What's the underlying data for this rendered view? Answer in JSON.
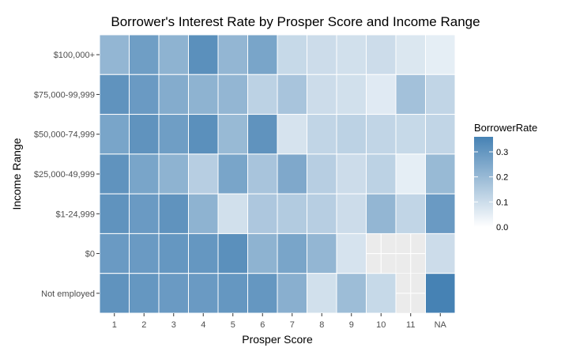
{
  "chart_data": {
    "type": "heatmap",
    "title": "Borrower's Interest Rate by Prosper Score and Income Range",
    "xlabel": "Prosper Score",
    "ylabel": "Income Range",
    "x_categories": [
      "1",
      "2",
      "3",
      "4",
      "5",
      "6",
      "7",
      "8",
      "9",
      "10",
      "11",
      "NA"
    ],
    "y_categories": [
      "$100,000+",
      "$75,000-99,999",
      "$50,000-74,999",
      "$25,000-49,999",
      "$1-24,999",
      "$0",
      "Not employed"
    ],
    "values": [
      [
        0.21,
        0.28,
        0.22,
        0.32,
        0.21,
        0.26,
        0.11,
        0.1,
        0.09,
        0.1,
        0.07,
        0.05
      ],
      [
        0.31,
        0.29,
        0.24,
        0.22,
        0.21,
        0.13,
        0.17,
        0.1,
        0.09,
        0.06,
        0.18,
        0.12
      ],
      [
        0.26,
        0.31,
        0.28,
        0.32,
        0.2,
        0.31,
        0.08,
        0.12,
        0.13,
        0.12,
        0.11,
        0.12
      ],
      [
        0.31,
        0.26,
        0.22,
        0.14,
        0.26,
        0.17,
        0.25,
        0.14,
        0.1,
        0.13,
        0.05,
        0.2
      ],
      [
        0.31,
        0.29,
        0.31,
        0.22,
        0.09,
        0.16,
        0.15,
        0.14,
        0.1,
        0.21,
        0.12,
        0.29
      ],
      [
        0.29,
        0.29,
        0.3,
        0.3,
        0.32,
        0.22,
        0.26,
        0.21,
        0.08,
        null,
        null,
        0.1
      ],
      [
        0.31,
        0.3,
        0.29,
        0.29,
        0.3,
        0.3,
        0.23,
        0.09,
        0.19,
        0.11,
        null,
        0.36
      ]
    ],
    "legend": {
      "title": "BorrowerRate",
      "ticks": [
        0.0,
        0.1,
        0.2,
        0.3
      ],
      "tick_labels": [
        "0.0",
        "0.1",
        "0.2",
        "0.3"
      ],
      "placement": "right",
      "range": [
        0.0,
        0.36
      ]
    },
    "colors": {
      "low": "#ffffff",
      "high": "#4682b4",
      "na": "#ebebeb",
      "panel_background": "#ebebeb",
      "grid": "#ffffff"
    },
    "grid": true
  }
}
